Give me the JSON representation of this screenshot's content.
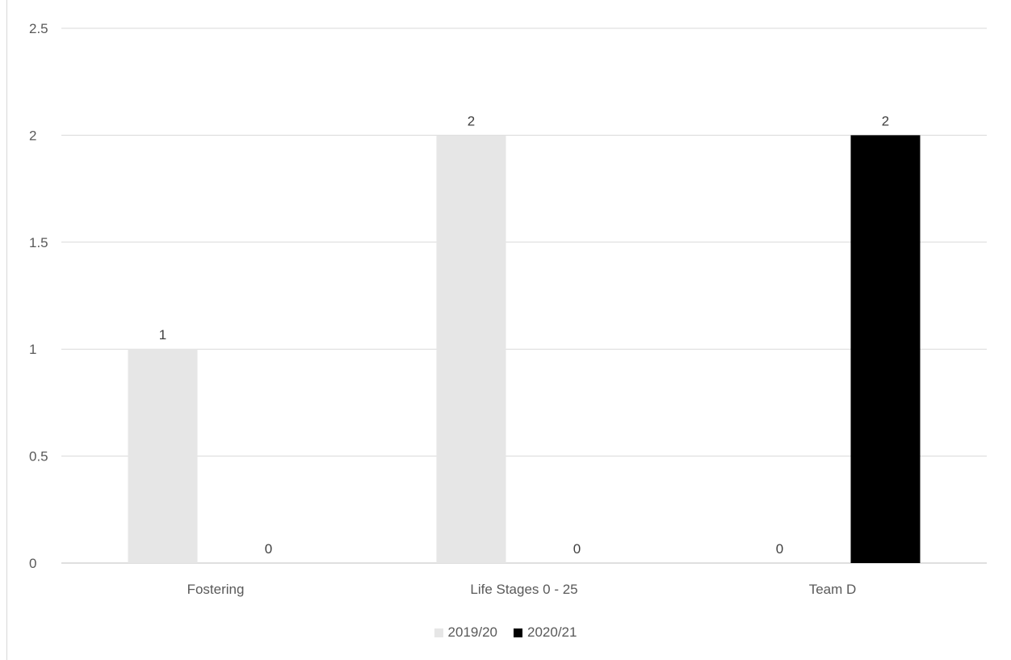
{
  "chart_data": {
    "type": "bar",
    "categories": [
      "Fostering",
      "Life Stages 0 - 25",
      "Team D"
    ],
    "series": [
      {
        "name": "2019/20",
        "values": [
          1,
          2,
          0
        ],
        "color": "#e6e6e6"
      },
      {
        "name": "2020/21",
        "values": [
          0,
          0,
          2
        ],
        "color": "#000000"
      }
    ],
    "y_ticks": [
      "0",
      "0.5",
      "1",
      "1.5",
      "2",
      "2.5"
    ],
    "ylim": [
      0,
      2.5
    ],
    "grid": true,
    "legend_position": "bottom",
    "data_labels": true
  }
}
